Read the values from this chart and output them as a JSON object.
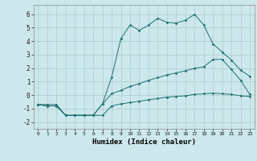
{
  "xlabel": "Humidex (Indice chaleur)",
  "background_color": "#cde8ec",
  "grid_color": "#aacccc",
  "line_color": "#1e7070",
  "xlim": [
    -0.5,
    23.5
  ],
  "ylim": [
    -2.5,
    6.7
  ],
  "xticks": [
    0,
    1,
    2,
    3,
    4,
    5,
    6,
    7,
    8,
    9,
    10,
    11,
    12,
    13,
    14,
    15,
    16,
    17,
    18,
    19,
    20,
    21,
    22,
    23
  ],
  "yticks": [
    -2,
    -1,
    0,
    1,
    2,
    3,
    4,
    5,
    6
  ],
  "line1_x": [
    0,
    1,
    2,
    3,
    4,
    5,
    6,
    7,
    8,
    9,
    10,
    11,
    12,
    13,
    14,
    15,
    16,
    17,
    18,
    19,
    20,
    21,
    22,
    23
  ],
  "line1_y": [
    -0.7,
    -0.8,
    -0.8,
    -1.5,
    -1.5,
    -1.5,
    -1.5,
    -1.5,
    -0.8,
    -0.65,
    -0.55,
    -0.45,
    -0.35,
    -0.25,
    -0.15,
    -0.1,
    -0.05,
    0.05,
    0.1,
    0.15,
    0.1,
    0.05,
    -0.05,
    -0.1
  ],
  "line2_x": [
    0,
    1,
    2,
    3,
    4,
    5,
    6,
    7,
    8,
    9,
    10,
    11,
    12,
    13,
    14,
    15,
    16,
    17,
    18,
    19,
    20,
    21,
    22,
    23
  ],
  "line2_y": [
    -0.7,
    -0.8,
    -0.8,
    -1.5,
    -1.5,
    -1.5,
    -1.5,
    -0.65,
    1.35,
    4.2,
    5.2,
    4.8,
    5.2,
    5.7,
    5.4,
    5.35,
    5.55,
    6.0,
    5.2,
    3.8,
    3.2,
    2.6,
    1.85,
    1.4
  ],
  "line3_x": [
    0,
    1,
    2,
    3,
    4,
    5,
    6,
    7,
    8,
    9,
    10,
    11,
    12,
    13,
    14,
    15,
    16,
    17,
    18,
    19,
    20,
    21,
    22,
    23
  ],
  "line3_y": [
    -0.7,
    -0.7,
    -0.7,
    -1.5,
    -1.5,
    -1.5,
    -1.5,
    -0.65,
    0.1,
    0.35,
    0.65,
    0.85,
    1.1,
    1.3,
    1.5,
    1.65,
    1.8,
    2.0,
    2.1,
    2.65,
    2.65,
    1.9,
    1.1,
    0.05
  ]
}
